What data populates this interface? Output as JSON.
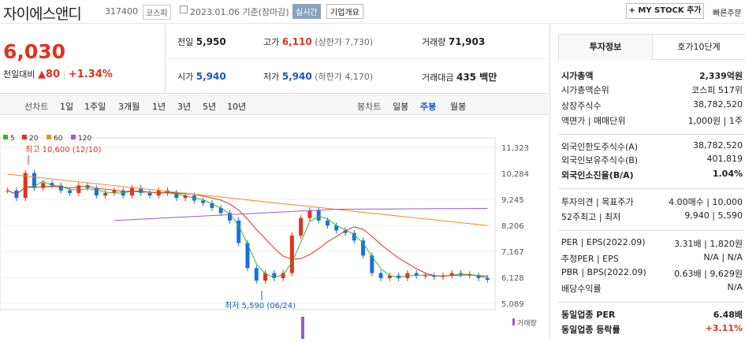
{
  "header": {
    "name": "자이에스앤디",
    "code": "317400",
    "market": "코스피",
    "date": "2023.01.06 기준(장마감)",
    "realtime": "실시간",
    "info": "기업개요",
    "mystock": "+ MY STOCK 추가",
    "quick": "빠른주문"
  },
  "quote": {
    "price": "6,030",
    "change_label": "전일대비",
    "change": "▲80",
    "pct": "+1.34%",
    "prev": "전일",
    "prev_v": "5,950",
    "high": "고가",
    "high_v": "6,110",
    "upper": "(상한가 7,730)",
    "vol": "거래량",
    "vol_v": "71,903",
    "open": "시가",
    "open_v": "5,940",
    "low": "저가",
    "low_v": "5,940",
    "lower": "(하한가 4,170)",
    "amt": "거래대금",
    "amt_v": "435 백만"
  },
  "tabs": {
    "line": "선차트",
    "d1": "1일",
    "w1": "1주일",
    "m3": "3개월",
    "y1": "1년",
    "y3": "3년",
    "y5": "5년",
    "y10": "10년",
    "candle": "봉차트",
    "day": "일봉",
    "week": "주봉",
    "month": "월봉"
  },
  "chart_data": {
    "type": "candlestick",
    "period": "주봉",
    "legend": [
      {
        "name": "5",
        "color": "#2eb82e"
      },
      {
        "name": "20",
        "color": "#e0321e"
      },
      {
        "name": "60",
        "color": "#f08c1e"
      },
      {
        "name": "120",
        "color": "#9b59d0"
      }
    ],
    "y_ticks": [
      "11,323",
      "10,284",
      "9,245",
      "8,206",
      "7,167",
      "6,128",
      "5,089"
    ],
    "high_note": "최고 10,600 (12/10)",
    "low_note": "최저 5,590 (06/24)",
    "volume_label": "거래량",
    "close_values": [
      9600,
      9300,
      10300,
      9700,
      9900,
      9800,
      9600,
      9500,
      9800,
      9700,
      9400,
      9500,
      9600,
      9400,
      9700,
      9500,
      9400,
      9600,
      9500,
      9300,
      9400,
      9200,
      9100,
      8900,
      8700,
      8400,
      7500,
      6500,
      6000,
      6300,
      6100,
      6300,
      7800,
      8500,
      8800,
      8400,
      8200,
      8000,
      7900,
      7600,
      7000,
      6300,
      6100,
      6200,
      6100,
      6300,
      6200,
      6200,
      6150,
      6200,
      6300,
      6250,
      6200,
      6100,
      6030
    ]
  },
  "side": {
    "tab1": "투자정보",
    "tab2": "호가10단계",
    "rows": [
      {
        "k": "시가총액",
        "v": "2,339억원"
      },
      {
        "k": "시가총액순위",
        "v": "코스피 517위"
      },
      {
        "k": "상장주식수",
        "v": "38,782,520"
      },
      {
        "k": "액면가 | 매매단위",
        "v": "1,000원 | 1주"
      },
      {
        "k": "외국인한도주식수(A)",
        "v": "38,782,520"
      },
      {
        "k": "외국인보유주식수(B)",
        "v": "401,819"
      },
      {
        "k": "외국인소진율(B/A)",
        "v": "1.04%"
      },
      {
        "k": "투자의견 | 목표주가",
        "v": "4.00매수 | 10,000"
      },
      {
        "k": "52주최고 | 최저",
        "v": "9,940 | 5,590"
      },
      {
        "k": "PER | EPS(2022.09)",
        "v": "3.31배 | 1,820원"
      },
      {
        "k": "추정PER | EPS",
        "v": "N/A | N/A"
      },
      {
        "k": "PBR | BPS(2022.09)",
        "v": "0.63배 | 9,629원"
      },
      {
        "k": "배당수익률",
        "v": "N/A"
      },
      {
        "k": "동일업종 PER",
        "v": "6.48배"
      },
      {
        "k": "동일업종 등락률",
        "v": "+3.11%"
      }
    ]
  }
}
